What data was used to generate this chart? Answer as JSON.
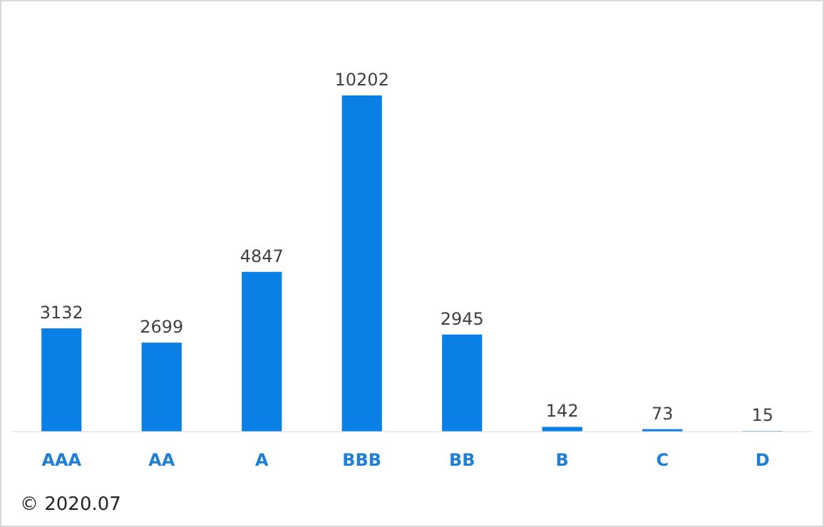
{
  "chart_data": {
    "type": "bar",
    "categories": [
      "AAA",
      "AA",
      "A",
      "BBB",
      "BB",
      "B",
      "C",
      "D"
    ],
    "values": [
      3132,
      2699,
      4847,
      10202,
      2945,
      142,
      73,
      15
    ],
    "color": "#0a80e6",
    "data_labels": true,
    "annotations": [
      "© 2020.07"
    ]
  }
}
